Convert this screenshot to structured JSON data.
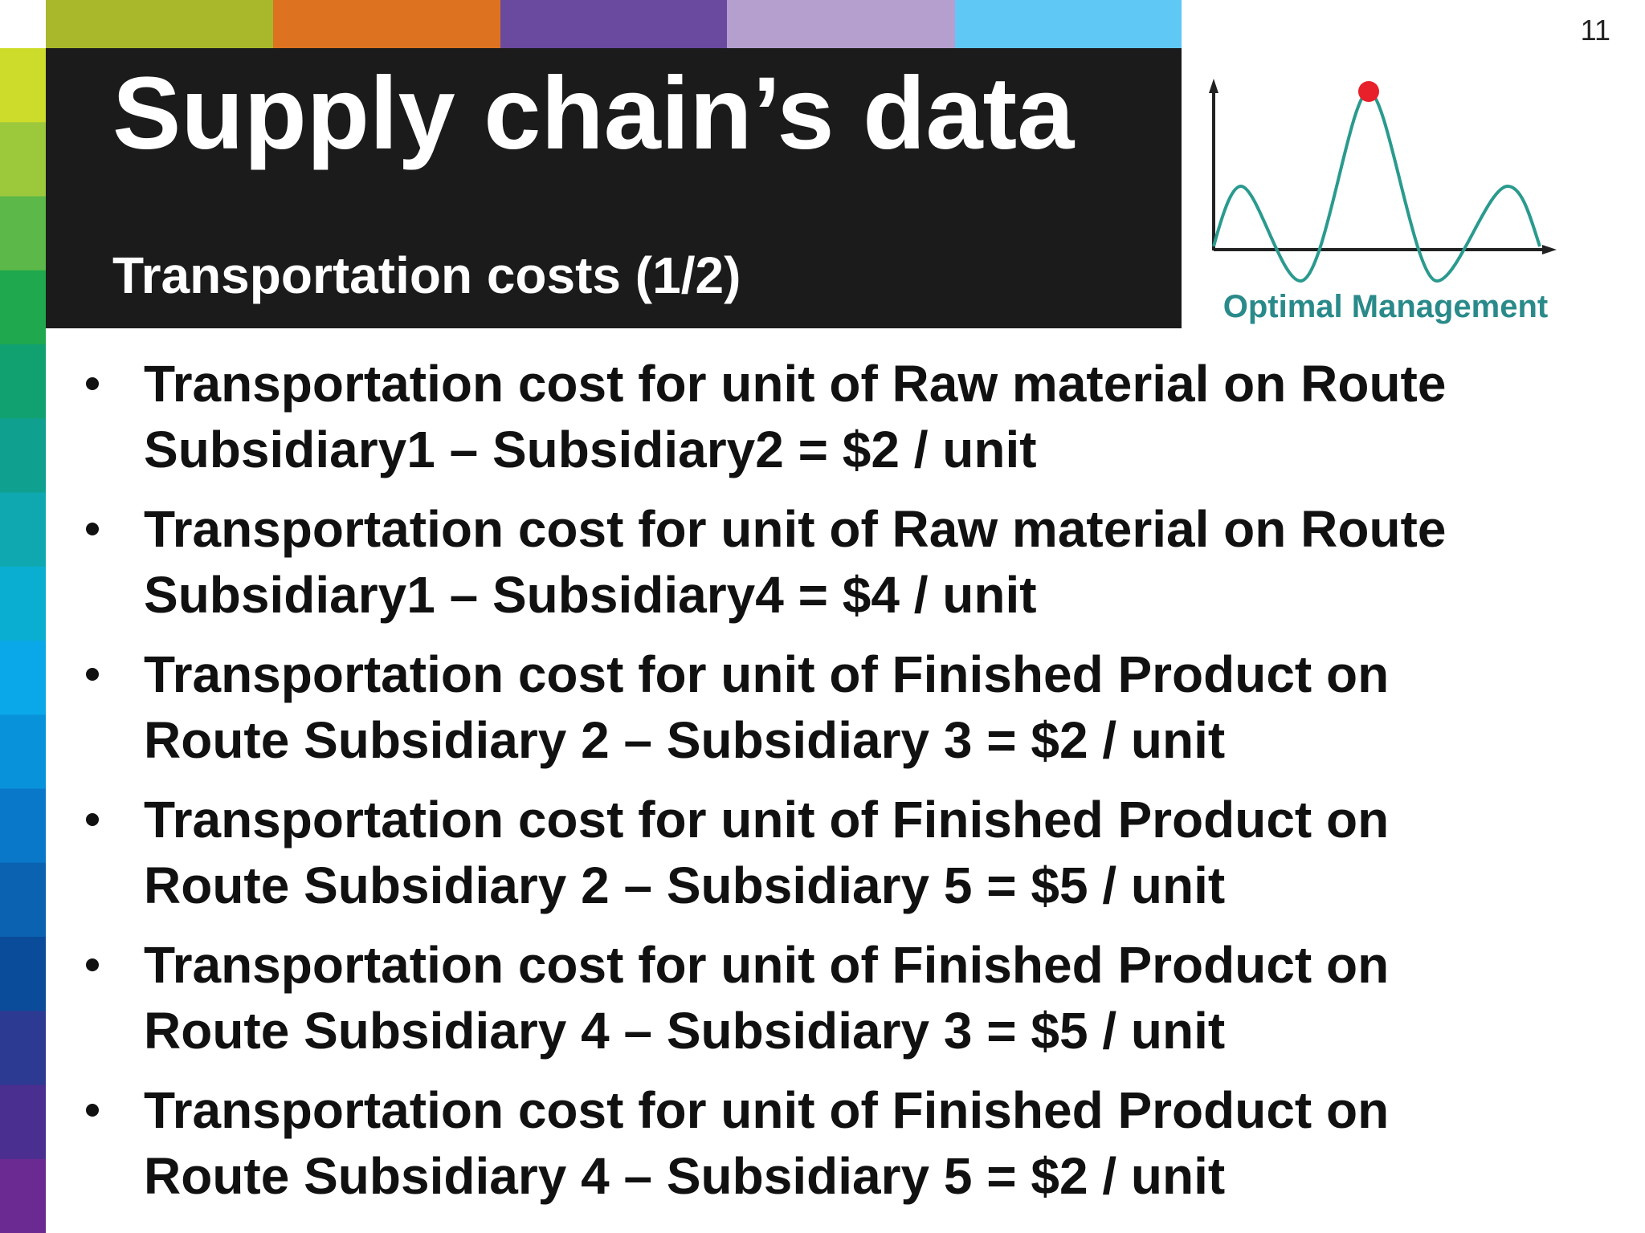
{
  "page_number": "11",
  "header": {
    "title": "Supply chain’s data",
    "subtitle": "Transportation costs (1/2)"
  },
  "logo": {
    "caption": "Optimal Management"
  },
  "bullets": [
    [
      "Transportation cost for unit of Raw material on Route",
      "Subsidiary1 – Subsidiary2  = $2 / unit"
    ],
    [
      "Transportation cost for unit of Raw material on Route",
      "Subsidiary1 – Subsidiary4  = $4 / unit"
    ],
    [
      "Transportation cost for unit of Finished Product on",
      "Route Subsidiary 2 – Subsidiary 3  = $2 / unit"
    ],
    [
      "Transportation cost for unit of Finished Product on",
      "Route Subsidiary 2 – Subsidiary 5  = $5 / unit"
    ],
    [
      "Transportation cost for unit of Finished Product on",
      "Route Subsidiary 4 – Subsidiary 3  = $5 / unit"
    ],
    [
      "Transportation cost for unit of Finished Product on",
      "Route Subsidiary 4 – Subsidiary 5  = $2 / unit"
    ]
  ]
}
